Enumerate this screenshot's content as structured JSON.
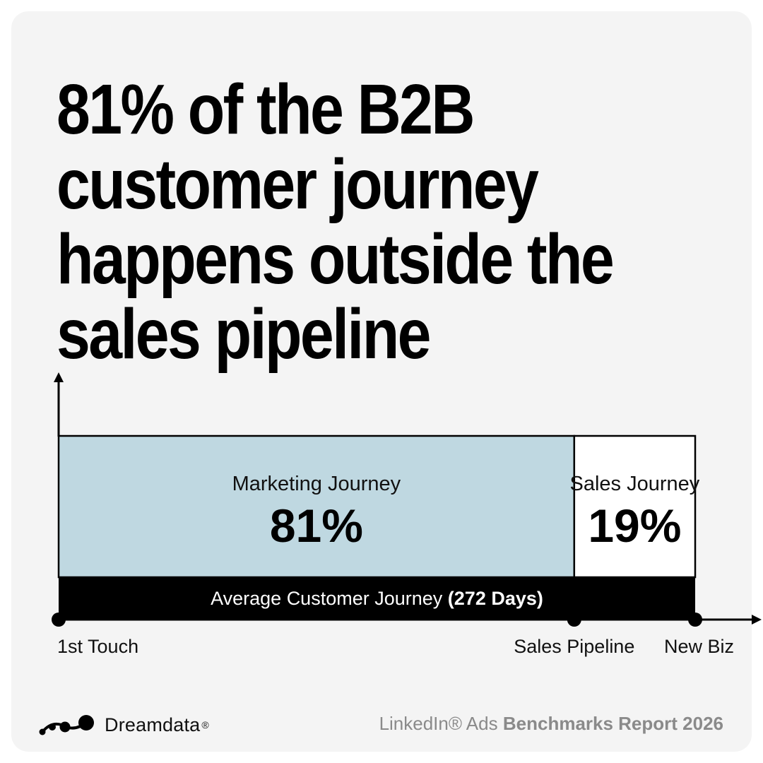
{
  "headline": "81% of the B2B customer journey happens outside the sales pipeline",
  "chart_data": {
    "type": "bar",
    "orientation": "horizontal-stacked",
    "total": {
      "label": "Average Customer Journey",
      "value_label": "(272 Days)"
    },
    "segments": [
      {
        "name": "Marketing Journey",
        "value": 81,
        "value_label": "81%",
        "color": "#bfd8e1"
      },
      {
        "name": "Sales Journey",
        "value": 19,
        "value_label": "19%",
        "color": "#ffffff"
      }
    ],
    "axis_markers": [
      "1st Touch",
      "Sales Pipeline",
      "New Biz"
    ],
    "xlim": [
      0,
      100
    ]
  },
  "footer": {
    "brand": "Dreamdata",
    "brand_reg": "®",
    "report_prefix": "LinkedIn® Ads",
    "report_title": "Benchmarks Report 2026"
  },
  "colors": {
    "background": "#f4f4f4",
    "bar_total": "#000000",
    "report_text": "#8a8a8a"
  },
  "icons": {
    "logo": "dreamdata-dots-logo"
  }
}
